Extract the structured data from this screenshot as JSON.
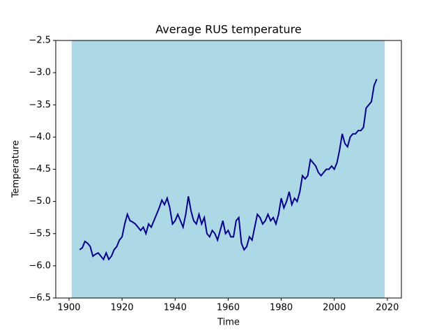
{
  "chart_data": {
    "type": "line",
    "title": "Average RUS temperature",
    "x_label": "Time",
    "y_label": "Temperature",
    "x": [
      1904,
      1905,
      1906,
      1907,
      1908,
      1909,
      1910,
      1911,
      1912,
      1913,
      1914,
      1915,
      1916,
      1917,
      1918,
      1919,
      1920,
      1921,
      1922,
      1923,
      1924,
      1925,
      1926,
      1927,
      1928,
      1929,
      1930,
      1931,
      1932,
      1933,
      1934,
      1935,
      1936,
      1937,
      1938,
      1939,
      1940,
      1941,
      1942,
      1943,
      1944,
      1945,
      1946,
      1947,
      1948,
      1949,
      1950,
      1951,
      1952,
      1953,
      1954,
      1955,
      1956,
      1957,
      1958,
      1959,
      1960,
      1961,
      1962,
      1963,
      1964,
      1965,
      1966,
      1967,
      1968,
      1969,
      1970,
      1971,
      1972,
      1973,
      1974,
      1975,
      1976,
      1977,
      1978,
      1979,
      1980,
      1981,
      1982,
      1983,
      1984,
      1985,
      1986,
      1987,
      1988,
      1989,
      1990,
      1991,
      1992,
      1993,
      1994,
      1995,
      1996,
      1997,
      1998,
      1999,
      2000,
      2001,
      2002,
      2003,
      2004,
      2005,
      2006,
      2007,
      2008,
      2009,
      2010,
      2011,
      2012,
      2013,
      2014,
      2015,
      2016
    ],
    "series": [
      {
        "color": "#00008b",
        "values": [
          -5.75,
          -5.72,
          -5.62,
          -5.65,
          -5.7,
          -5.85,
          -5.82,
          -5.8,
          -5.85,
          -5.9,
          -5.8,
          -5.9,
          -5.85,
          -5.75,
          -5.7,
          -5.6,
          -5.55,
          -5.35,
          -5.2,
          -5.3,
          -5.32,
          -5.35,
          -5.4,
          -5.45,
          -5.4,
          -5.5,
          -5.35,
          -5.4,
          -5.3,
          -5.2,
          -5.1,
          -4.98,
          -5.05,
          -4.95,
          -5.1,
          -5.35,
          -5.3,
          -5.2,
          -5.3,
          -5.4,
          -5.2,
          -4.92,
          -5.15,
          -5.3,
          -5.35,
          -5.2,
          -5.35,
          -5.25,
          -5.5,
          -5.55,
          -5.45,
          -5.5,
          -5.6,
          -5.45,
          -5.3,
          -5.5,
          -5.45,
          -5.55,
          -5.55,
          -5.3,
          -5.25,
          -5.65,
          -5.75,
          -5.7,
          -5.55,
          -5.6,
          -5.4,
          -5.2,
          -5.25,
          -5.35,
          -5.3,
          -5.2,
          -5.3,
          -5.25,
          -5.35,
          -5.2,
          -4.95,
          -5.1,
          -5.0,
          -4.85,
          -5.05,
          -4.95,
          -5.0,
          -4.85,
          -4.6,
          -4.65,
          -4.6,
          -4.35,
          -4.4,
          -4.45,
          -4.55,
          -4.6,
          -4.55,
          -4.5,
          -4.5,
          -4.45,
          -4.5,
          -4.4,
          -4.2,
          -3.95,
          -4.1,
          -4.15,
          -4.0,
          -3.95,
          -3.95,
          -3.9,
          -3.9,
          -3.85,
          -3.55,
          -3.5,
          -3.45,
          -3.2,
          -3.1
        ]
      }
    ],
    "shade": {
      "x": [
        1901,
        2019
      ],
      "color": "#add8e6"
    },
    "xlim": [
      1895,
      2025.3
    ],
    "xticks": [
      1900,
      1920,
      1940,
      1960,
      1980,
      2000,
      2020
    ],
    "ylim": [
      -6.5,
      -2.5
    ],
    "yticks": [
      {
        "value": -6.5,
        "label": "−6.5"
      },
      {
        "value": -6.0,
        "label": "−6.0"
      },
      {
        "value": -5.5,
        "label": "−5.5"
      },
      {
        "value": -5.0,
        "label": "−5.0"
      },
      {
        "value": -4.5,
        "label": "−4.5"
      },
      {
        "value": -4.0,
        "label": "−4.0"
      },
      {
        "value": -3.5,
        "label": "−3.5"
      },
      {
        "value": -3.0,
        "label": "−3.0"
      },
      {
        "value": -2.5,
        "label": "−2.5"
      }
    ]
  }
}
